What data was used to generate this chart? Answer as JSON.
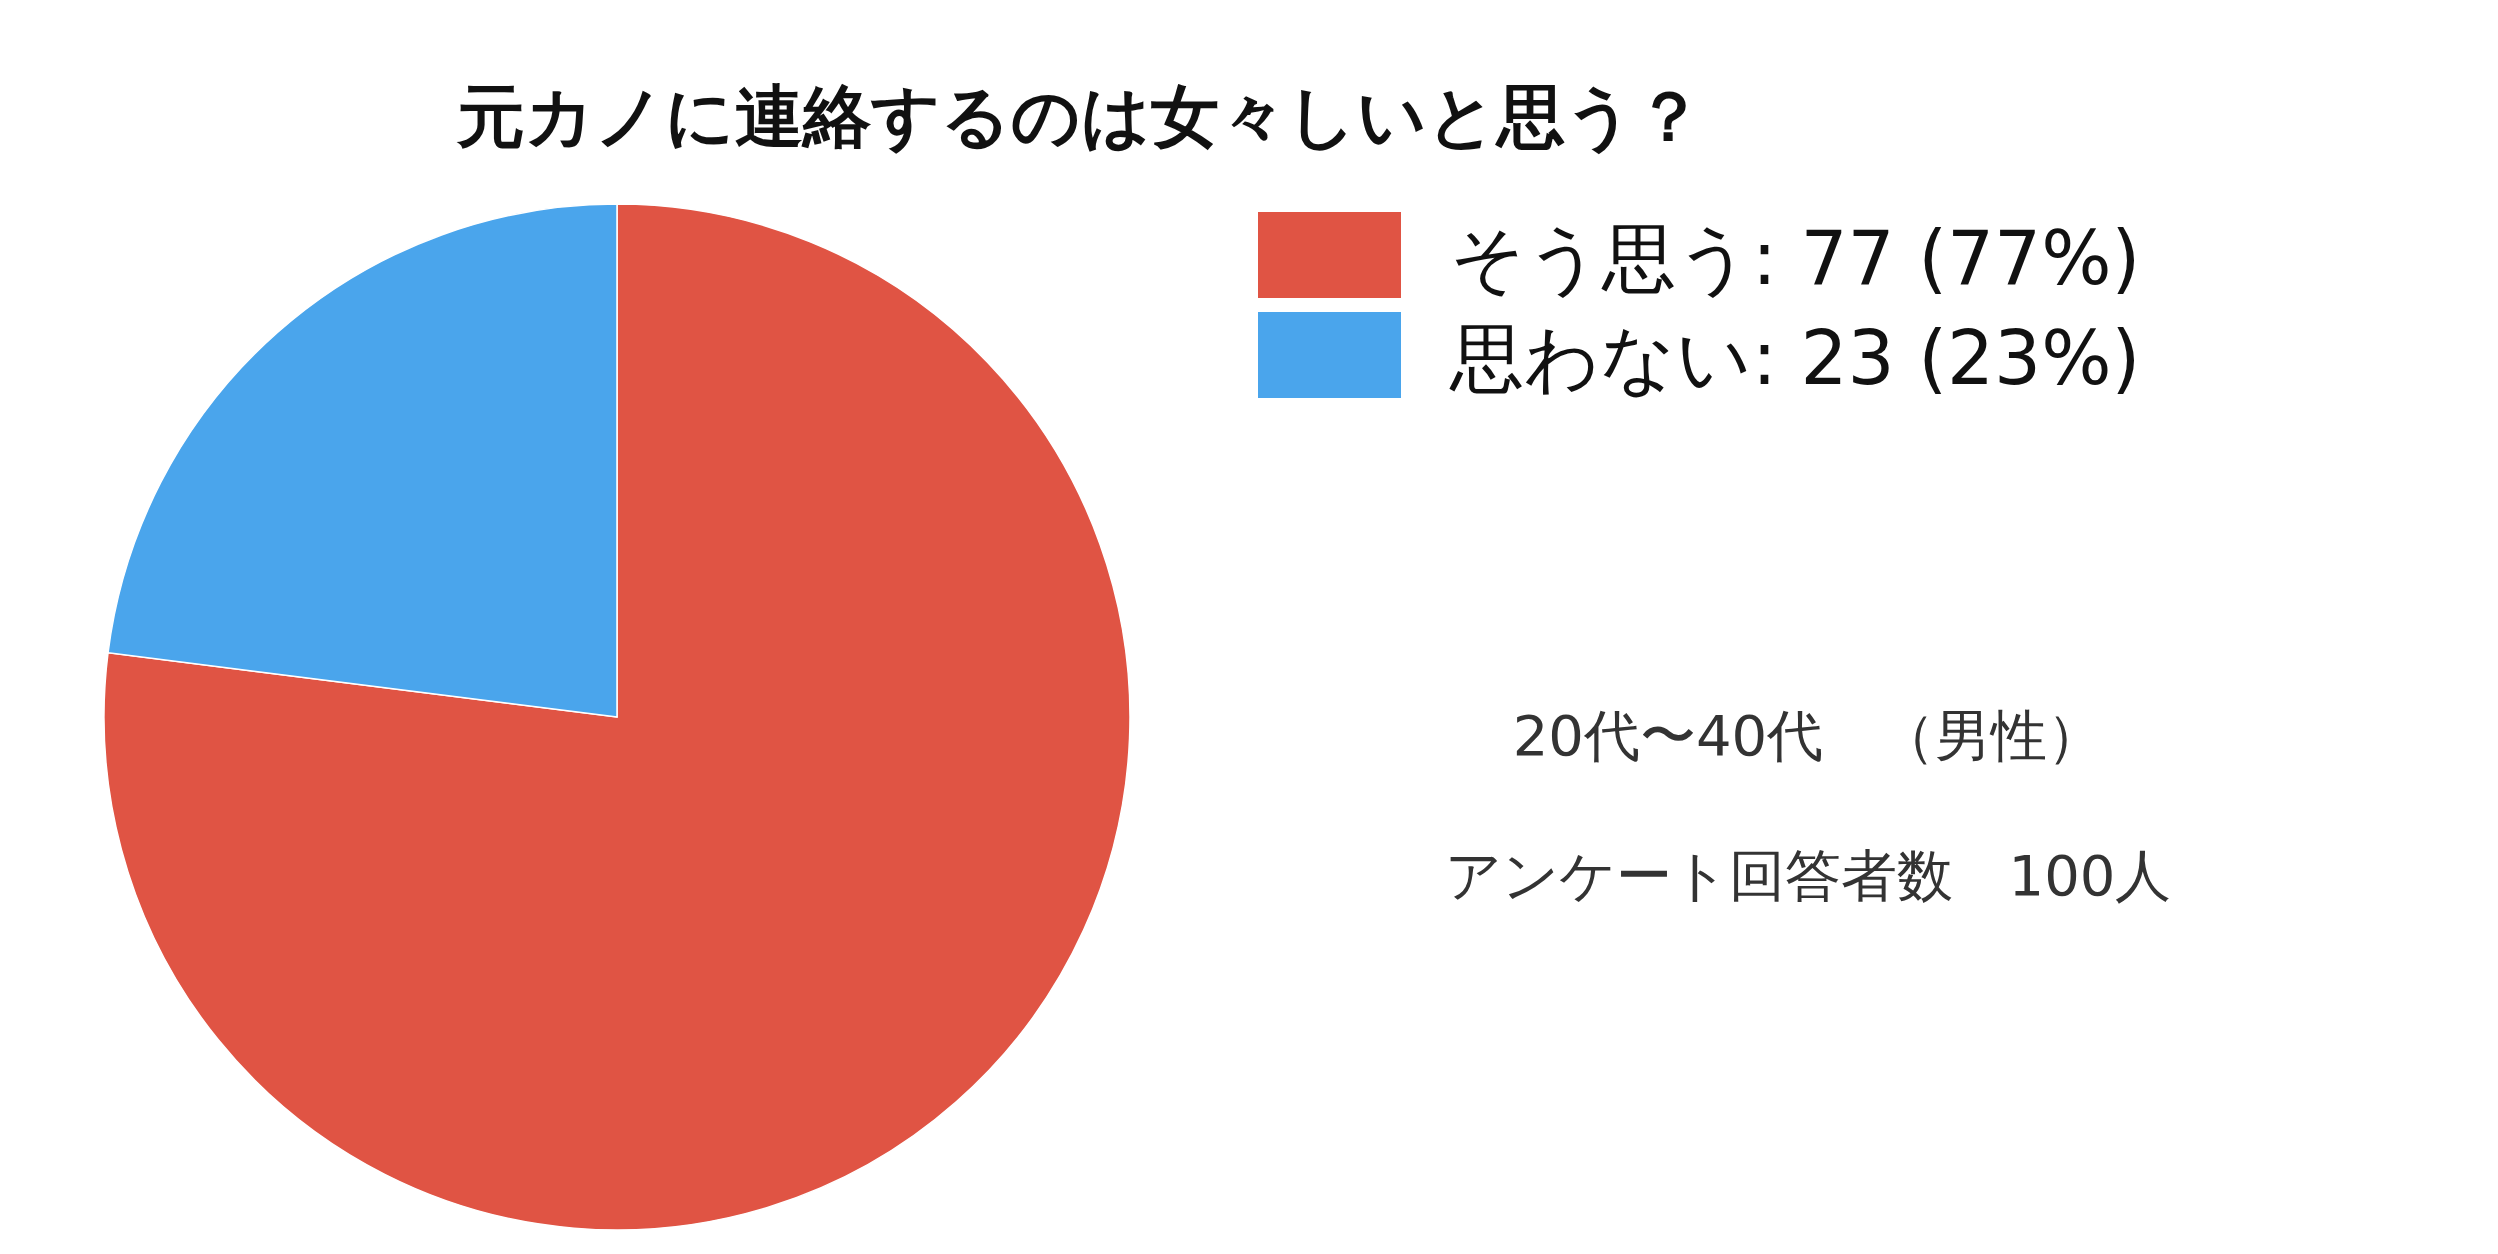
{
  "chart_data": {
    "type": "pie",
    "title": "元カノに連絡するのは女々しいと思う？",
    "categories": [
      "そう思う",
      "思わない"
    ],
    "values": [
      77,
      23
    ],
    "colors": [
      "#e05444",
      "#4aa5ec"
    ],
    "value_labels": [
      "77 (77%)",
      "23 (23%)"
    ],
    "legend": "top right",
    "annotations": [
      "20代〜40代　（男性）",
      "アンケート回答者数　100人"
    ]
  }
}
